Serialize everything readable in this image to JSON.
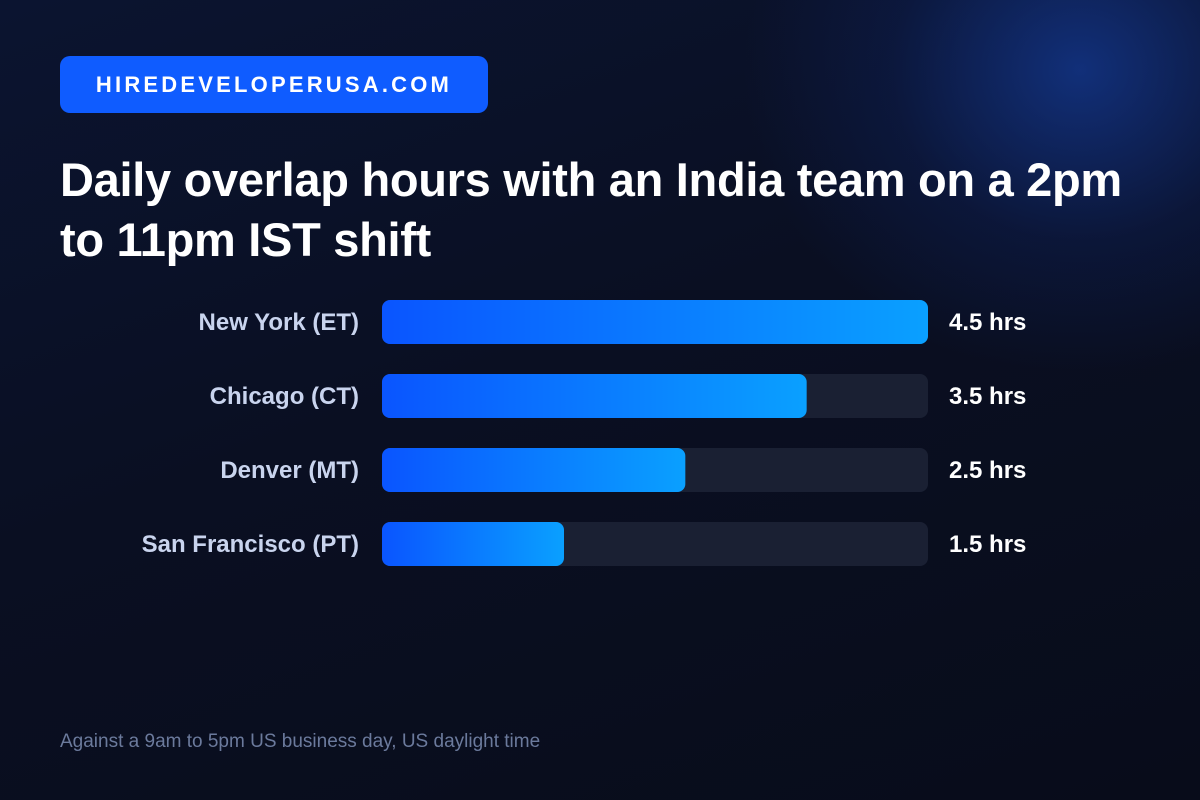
{
  "brand": {
    "label": "HIREDEVELOPERUSA.COM"
  },
  "title": "Daily overlap hours with an India team on a 2pm to 11pm IST shift",
  "footnote": "Against a 9am to 5pm US business day, US daylight time",
  "colors": {
    "brand_badge": "#0f5cff",
    "bar_gradient_start": "#0a55ff",
    "bar_gradient_end": "#0aa0ff",
    "track": "#1a2033",
    "category_text": "#c9d4ee",
    "value_text": "#ffffff",
    "footnote_text": "#6b7a9c"
  },
  "chart_data": {
    "type": "bar",
    "orientation": "horizontal",
    "categories": [
      "New York (ET)",
      "Chicago (CT)",
      "Denver (MT)",
      "San Francisco (PT)"
    ],
    "values": [
      4.5,
      3.5,
      2.5,
      1.5
    ],
    "value_labels": [
      "4.5 hrs",
      "3.5 hrs",
      "2.5 hrs",
      "1.5 hrs"
    ],
    "xlim": [
      0,
      4.5
    ],
    "unit": "hrs",
    "grid": false,
    "legend": "none"
  }
}
